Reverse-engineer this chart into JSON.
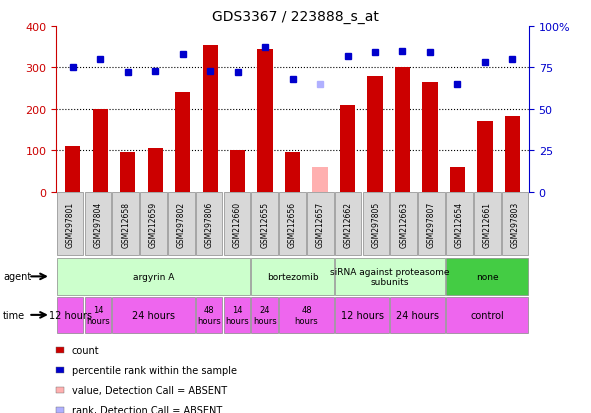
{
  "title": "GDS3367 / 223888_s_at",
  "samples": [
    "GSM297801",
    "GSM297804",
    "GSM212658",
    "GSM212659",
    "GSM297802",
    "GSM297806",
    "GSM212660",
    "GSM212655",
    "GSM212656",
    "GSM212657",
    "GSM212662",
    "GSM297805",
    "GSM212663",
    "GSM297807",
    "GSM212654",
    "GSM212661",
    "GSM297803"
  ],
  "bar_values": [
    110,
    200,
    95,
    105,
    240,
    355,
    100,
    345,
    95,
    60,
    210,
    280,
    300,
    265,
    60,
    170,
    182
  ],
  "bar_absent": [
    false,
    false,
    false,
    false,
    false,
    false,
    false,
    false,
    false,
    true,
    false,
    false,
    false,
    false,
    false,
    false,
    false
  ],
  "rank_values": [
    75,
    80,
    72,
    73,
    83,
    73,
    72,
    87,
    68,
    65,
    82,
    84,
    85,
    84,
    65,
    78,
    80
  ],
  "rank_absent": [
    false,
    false,
    false,
    false,
    false,
    false,
    false,
    false,
    false,
    true,
    false,
    false,
    false,
    false,
    false,
    false,
    false
  ],
  "ylim_left": [
    0,
    400
  ],
  "ylim_right": [
    0,
    100
  ],
  "yticks_left": [
    0,
    100,
    200,
    300,
    400
  ],
  "yticks_right": [
    0,
    25,
    50,
    75,
    100
  ],
  "ytick_labels_right": [
    "0",
    "25",
    "50",
    "75",
    "100%"
  ],
  "bar_color": "#cc0000",
  "bar_absent_color": "#ffb0b0",
  "rank_color": "#0000cc",
  "rank_absent_color": "#b0b0ff",
  "bg_color": "#ffffff",
  "agent_groups": [
    {
      "label": "argyrin A",
      "start": 0,
      "end": 7,
      "color": "#ccffcc"
    },
    {
      "label": "bortezomib",
      "start": 7,
      "end": 10,
      "color": "#ccffcc"
    },
    {
      "label": "siRNA against proteasome\nsubunits",
      "start": 10,
      "end": 14,
      "color": "#ccffcc"
    },
    {
      "label": "none",
      "start": 14,
      "end": 17,
      "color": "#44cc44"
    }
  ],
  "time_groups": [
    {
      "label": "12 hours",
      "start": 0,
      "end": 1,
      "color": "#ee66ee",
      "fontsize": 7
    },
    {
      "label": "14\nhours",
      "start": 1,
      "end": 2,
      "color": "#ee66ee",
      "fontsize": 6
    },
    {
      "label": "24 hours",
      "start": 2,
      "end": 5,
      "color": "#ee66ee",
      "fontsize": 7
    },
    {
      "label": "48\nhours",
      "start": 5,
      "end": 6,
      "color": "#ee66ee",
      "fontsize": 6
    },
    {
      "label": "14\nhours",
      "start": 6,
      "end": 7,
      "color": "#ee66ee",
      "fontsize": 6
    },
    {
      "label": "24\nhours",
      "start": 7,
      "end": 8,
      "color": "#ee66ee",
      "fontsize": 6
    },
    {
      "label": "48\nhours",
      "start": 8,
      "end": 10,
      "color": "#ee66ee",
      "fontsize": 6
    },
    {
      "label": "12 hours",
      "start": 10,
      "end": 12,
      "color": "#ee66ee",
      "fontsize": 7
    },
    {
      "label": "24 hours",
      "start": 12,
      "end": 14,
      "color": "#ee66ee",
      "fontsize": 7
    },
    {
      "label": "control",
      "start": 14,
      "end": 17,
      "color": "#ee66ee",
      "fontsize": 7
    }
  ],
  "legend_items": [
    {
      "label": "count",
      "color": "#cc0000"
    },
    {
      "label": "percentile rank within the sample",
      "color": "#0000cc"
    },
    {
      "label": "value, Detection Call = ABSENT",
      "color": "#ffb0b0"
    },
    {
      "label": "rank, Detection Call = ABSENT",
      "color": "#b0b0ff"
    }
  ]
}
